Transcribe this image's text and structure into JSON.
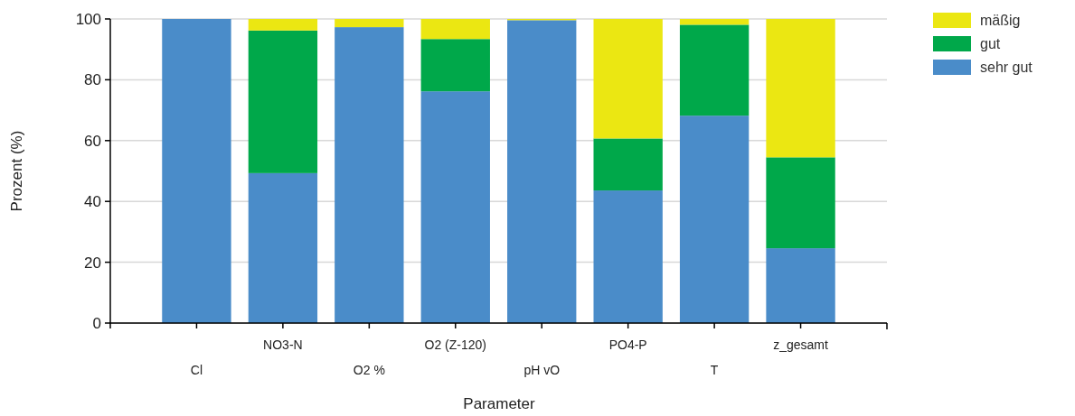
{
  "chart_data": {
    "type": "bar",
    "stacked": true,
    "xlabel": "Parameter",
    "ylabel": "Prozent (%)",
    "categories": [
      "Cl",
      "NO3-N",
      "O2 %",
      "O2 (Z-120)",
      "pH vO",
      "PO4-P",
      "T",
      "z_gesamt"
    ],
    "series": [
      {
        "name": "sehr gut",
        "color": "#4a8cc9",
        "values": [
          100,
          49.3,
          97.3,
          76.2,
          99.6,
          43.6,
          68.2,
          24.6
        ]
      },
      {
        "name": "gut",
        "color": "#00a84a",
        "values": [
          0,
          46.9,
          0,
          17.2,
          0,
          17.1,
          29.9,
          29.9
        ]
      },
      {
        "name": "mäßig",
        "color": "#ebe712",
        "values": [
          0,
          3.8,
          2.7,
          6.6,
          0.4,
          39.3,
          1.9,
          45.5
        ]
      }
    ],
    "ylim": [
      0,
      100
    ],
    "yticks": [
      0,
      20,
      40,
      60,
      80,
      100
    ],
    "grid": "y",
    "legend": "top right"
  }
}
